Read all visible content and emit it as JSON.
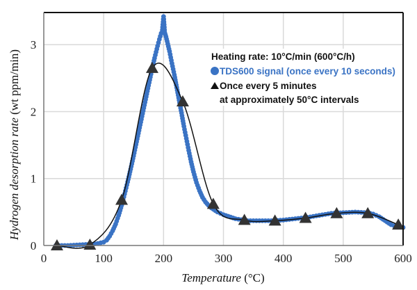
{
  "chart_data": {
    "type": "line",
    "title": "",
    "xlabel_italic": "Temperature",
    "xlabel_unit": " (°C)",
    "ylabel_italic": "Hydrogen desorption rate",
    "ylabel_unit": " (wt ppm/min)",
    "xlim": [
      0,
      600
    ],
    "ylim": [
      0,
      3.5
    ],
    "xticks": [
      0,
      100,
      200,
      300,
      400,
      500,
      600
    ],
    "yticks": [
      0,
      1,
      2,
      3
    ],
    "xtick_labels": [
      "0",
      "100",
      "200",
      "300",
      "400",
      "500",
      "600"
    ],
    "ytick_labels": [
      "0",
      "1",
      "2",
      "3"
    ],
    "grid": true,
    "legend_position": "top-right",
    "legend": {
      "heading": "Heating rate: 10°C/min (600°C/h)",
      "series1": "TDS600 signal (once every 10 seconds)",
      "series2_line1": "Once every 5 minutes",
      "series2_line2": "at approximately 50°C intervals"
    },
    "colors": {
      "tds": "#3a73c4",
      "triangle": "#333333",
      "grid": "#d9d9d9"
    },
    "series": [
      {
        "name": "TDS600 signal (once every 10 seconds)",
        "marker": "circle",
        "x": [
          20,
          40,
          60,
          80,
          90,
          100,
          105,
          110,
          115,
          120,
          125,
          130,
          135,
          140,
          145,
          150,
          155,
          160,
          165,
          170,
          175,
          180,
          185,
          190,
          193,
          196,
          198,
          200,
          202,
          204,
          206,
          210,
          214,
          218,
          222,
          226,
          230,
          234,
          238,
          242,
          246,
          250,
          255,
          260,
          265,
          270,
          275,
          280,
          290,
          300,
          320,
          340,
          360,
          380,
          400,
          420,
          440,
          460,
          480,
          500,
          520,
          540,
          550,
          560,
          570,
          580,
          590,
          600
        ],
        "y": [
          0.0,
          0.0,
          0.01,
          0.02,
          0.03,
          0.05,
          0.08,
          0.14,
          0.22,
          0.32,
          0.45,
          0.6,
          0.77,
          0.95,
          1.14,
          1.34,
          1.55,
          1.76,
          1.97,
          2.18,
          2.39,
          2.6,
          2.8,
          2.98,
          3.08,
          3.17,
          3.22,
          3.42,
          3.18,
          3.12,
          3.05,
          2.9,
          2.72,
          2.55,
          2.36,
          2.17,
          1.98,
          1.78,
          1.6,
          1.42,
          1.25,
          1.1,
          0.94,
          0.82,
          0.72,
          0.65,
          0.6,
          0.56,
          0.5,
          0.46,
          0.4,
          0.37,
          0.37,
          0.37,
          0.38,
          0.4,
          0.42,
          0.45,
          0.48,
          0.49,
          0.5,
          0.49,
          0.47,
          0.43,
          0.37,
          0.31,
          0.28,
          0.27
        ]
      },
      {
        "name": "Once every 5 minutes at approximately 50°C intervals",
        "marker": "triangle",
        "x": [
          22,
          77,
          130,
          181,
          232,
          283,
          335,
          386,
          437,
          489,
          541,
          592
        ],
        "y": [
          0.0,
          0.01,
          0.68,
          2.65,
          2.15,
          0.62,
          0.38,
          0.37,
          0.41,
          0.48,
          0.48,
          0.31
        ]
      }
    ]
  }
}
